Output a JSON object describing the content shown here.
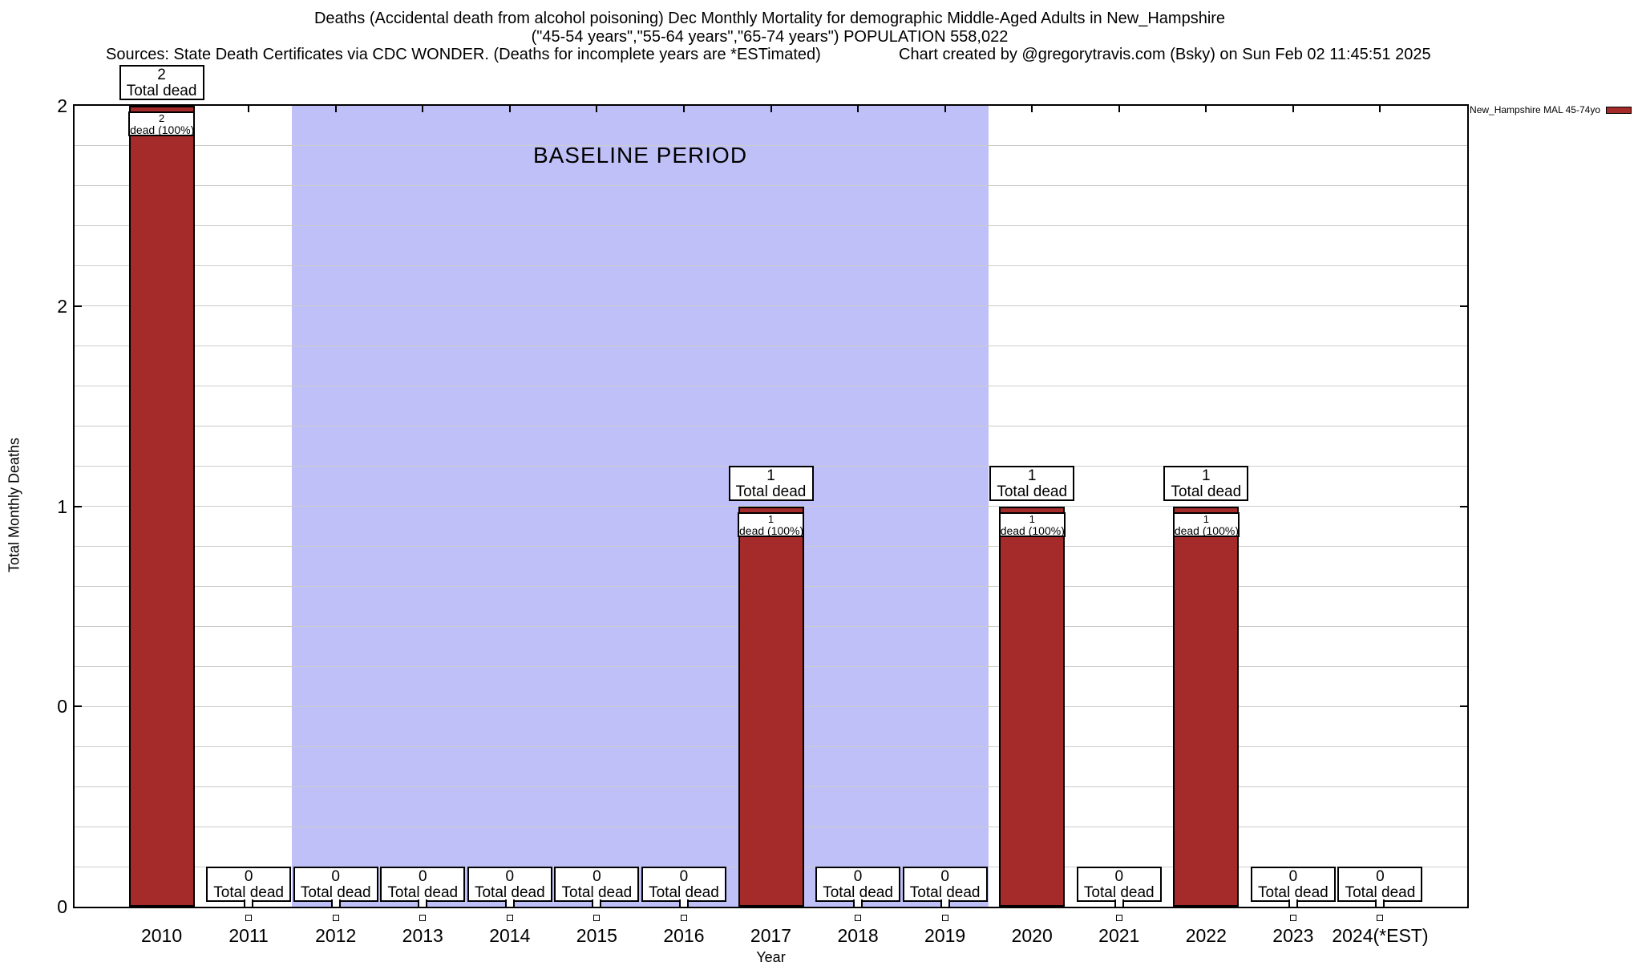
{
  "header": {
    "title_line1": "Deaths (Accidental death from alcohol poisoning) Dec Monthly Mortality for demographic Middle-Aged Adults in New_Hampshire",
    "title_line2": "(\"45-54 years\",\"55-64 years\",\"65-74 years\") POPULATION 558,022",
    "sources": "Sources: State Death Certificates via CDC WONDER. (Deaths for incomplete years are *ESTimated)",
    "credit": "Chart created by @gregorytravis.com (Bsky) on Sun Feb 02 11:45:51 2025"
  },
  "axes": {
    "y_title": "Total Monthly Deaths",
    "x_title": "Year",
    "y_tick_labels": [
      "2",
      "2",
      "1",
      "0",
      "0"
    ],
    "y_tick_values": [
      2,
      1.5,
      1,
      0.5,
      0
    ],
    "y_range": [
      0,
      2
    ],
    "x_range": [
      2009,
      2025
    ],
    "minor_grid_step": 0.1,
    "grid": "on"
  },
  "legend": {
    "label": "New_Hampshire MAL 45-74yo",
    "swatch_color": "#a52a2a",
    "position": "outside-top-right"
  },
  "annotations": {
    "total_dead_label": "Total dead",
    "dead_pct_label": "dead (100%)"
  },
  "colors": {
    "bar": "#a52a2a",
    "baseline_shading": "#c0c0f8",
    "grid": "#cccccc",
    "axis": "#000000",
    "background": "#ffffff"
  },
  "chart_data": {
    "type": "bar",
    "title": "Deaths (Accidental death from alcohol poisoning) Dec Monthly Mortality for demographic Middle-Aged Adults in New_Hampshire",
    "subtitle": "(\"45-54 years\",\"55-64 years\",\"65-74 years\") POPULATION 558,022",
    "categories": [
      "2010",
      "2011",
      "2012",
      "2013",
      "2014",
      "2015",
      "2016",
      "2017",
      "2018",
      "2019",
      "2020",
      "2021",
      "2022",
      "2023",
      "2024(*EST)"
    ],
    "years": [
      2010,
      2011,
      2012,
      2013,
      2014,
      2015,
      2016,
      2017,
      2018,
      2019,
      2020,
      2021,
      2022,
      2023,
      2024
    ],
    "values": [
      2,
      0,
      0,
      0,
      0,
      0,
      0,
      1,
      0,
      0,
      1,
      0,
      1,
      0,
      0
    ],
    "series_name": "New_Hampshire MAL 45-74yo",
    "xlabel": "Year",
    "ylabel": "Total Monthly Deaths",
    "ylim": [
      0,
      2
    ],
    "xlim": [
      2009,
      2025
    ],
    "bar_color": "#a52a2a",
    "baseline_region": {
      "x_start": 2011.5,
      "x_end": 2019.5,
      "label": "BASELINE PERIOD",
      "color": "#c0c0f8"
    }
  }
}
